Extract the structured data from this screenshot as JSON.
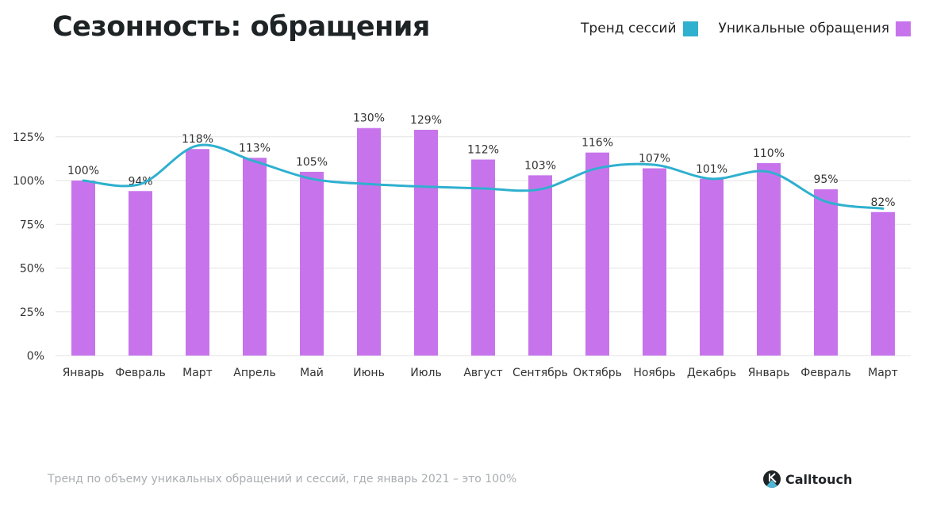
{
  "title": "Сезонность: обращения",
  "footnote": "Тренд по объему уникальных обращений и сессий, где январь 2021 – это 100%",
  "brand": "Calltouch",
  "chart_data": {
    "type": "bar",
    "title": "Сезонность: обращения",
    "categories": [
      "Январь",
      "Февраль",
      "Март",
      "Апрель",
      "Май",
      "Июнь",
      "Июль",
      "Август",
      "Сентябрь",
      "Октябрь",
      "Ноябрь",
      "Декабрь",
      "Январь",
      "Февраль",
      "Март"
    ],
    "series": [
      {
        "name": "Уникальные обращения",
        "type": "bar",
        "color": "#c774ec",
        "values": [
          100,
          94,
          118,
          113,
          105,
          130,
          129,
          112,
          103,
          116,
          107,
          101,
          110,
          95,
          82
        ],
        "labels": [
          "100%",
          "94%",
          "118%",
          "113%",
          "105%",
          "130%",
          "129%",
          "112%",
          "103%",
          "116%",
          "107%",
          "101%",
          "110%",
          "95%",
          "82%"
        ]
      },
      {
        "name": "Тренд сессий",
        "type": "line",
        "smooth": true,
        "color": "#2fb0cf",
        "values": [
          100,
          98,
          120,
          111,
          101,
          98,
          96.5,
          95.5,
          95,
          107,
          109,
          101,
          105,
          88,
          84
        ]
      }
    ],
    "legend_order": [
      "Тренд сессий",
      "Уникальные обращения"
    ],
    "legend_position": "top-right",
    "ylim": [
      0,
      125
    ],
    "yticks": [
      0,
      25,
      50,
      75,
      100,
      125
    ],
    "ytick_labels": [
      "0%",
      "25%",
      "50%",
      "75%",
      "100%",
      "125%"
    ],
    "grid": true
  }
}
